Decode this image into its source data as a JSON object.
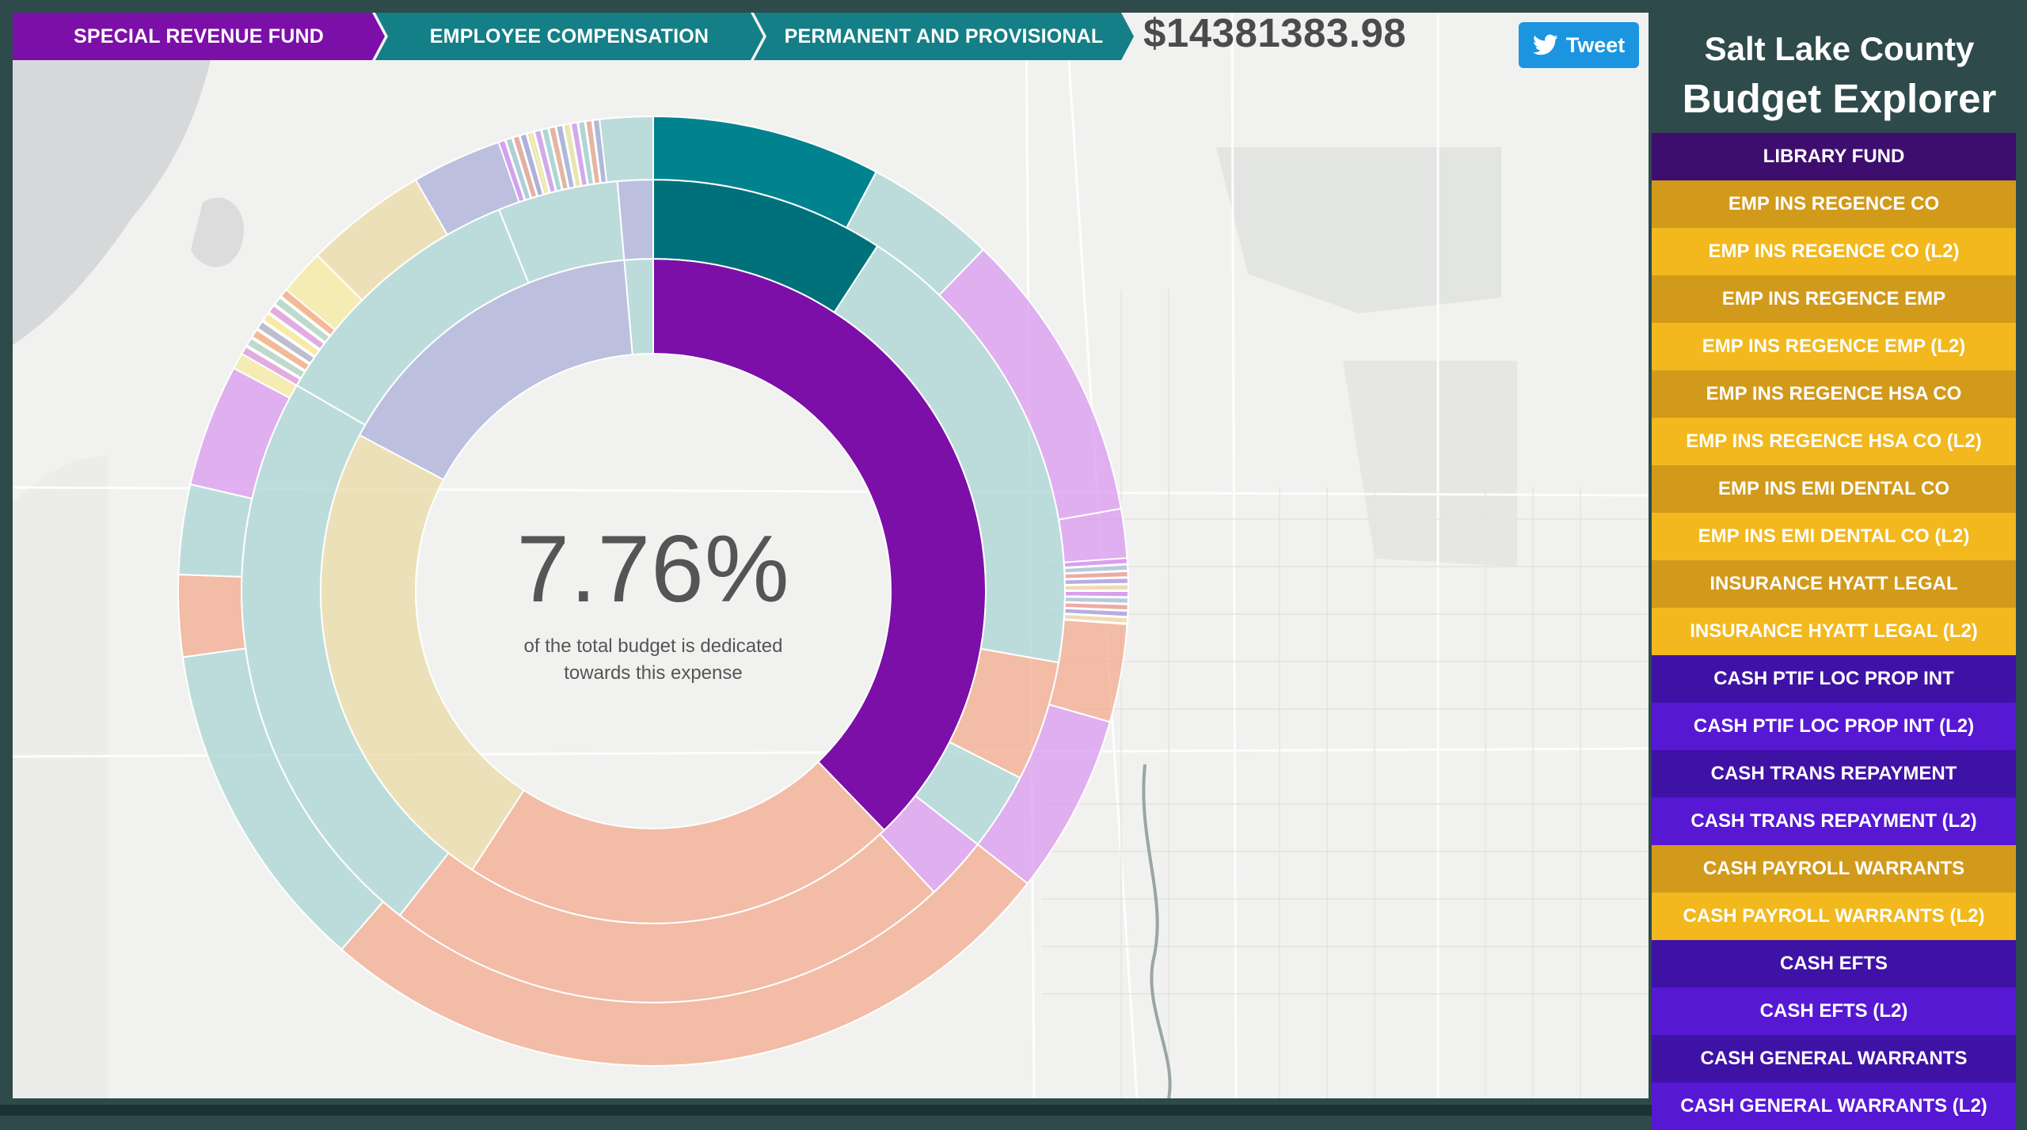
{
  "breadcrumb": [
    {
      "label": "SPECIAL REVENUE FUND",
      "color": "#7c0fa8"
    },
    {
      "label": "EMPLOYEE COMPENSATION",
      "color": "#147f86"
    },
    {
      "label": "PERMANENT AND PROVISIONAL",
      "color": "#147f86"
    }
  ],
  "total_amount": "$14381383.98",
  "tweet": {
    "label": "Tweet",
    "icon": "twitter-bird-icon"
  },
  "center": {
    "percent": "7.76%",
    "caption_line1": "of the total budget is dedicated",
    "caption_line2": "towards this expense"
  },
  "sidebar": {
    "title_line1": "Salt Lake County",
    "title_line2": "Budget Explorer",
    "items": [
      {
        "label": "LIBRARY FUND",
        "color": "#3d0e6e"
      },
      {
        "label": "EMP INS REGENCE CO",
        "color": "#d29a1b"
      },
      {
        "label": "EMP INS REGENCE CO (L2)",
        "color": "#f2b81d"
      },
      {
        "label": "EMP INS REGENCE EMP",
        "color": "#d29a1b"
      },
      {
        "label": "EMP INS REGENCE EMP (L2)",
        "color": "#f2b81d"
      },
      {
        "label": "EMP INS REGENCE HSA CO",
        "color": "#d29a1b"
      },
      {
        "label": "EMP INS REGENCE HSA CO (L2)",
        "color": "#f2b81d"
      },
      {
        "label": "EMP INS EMI DENTAL CO",
        "color": "#d29a1b"
      },
      {
        "label": "EMP INS EMI DENTAL CO (L2)",
        "color": "#f2b81d"
      },
      {
        "label": "INSURANCE HYATT LEGAL",
        "color": "#d29a1b"
      },
      {
        "label": "INSURANCE HYATT LEGAL (L2)",
        "color": "#f2b81d"
      },
      {
        "label": "CASH PTIF LOC PROP INT",
        "color": "#3f12a6"
      },
      {
        "label": "CASH PTIF LOC PROP INT (L2)",
        "color": "#5718d4"
      },
      {
        "label": "CASH TRANS REPAYMENT",
        "color": "#3f12a6"
      },
      {
        "label": "CASH TRANS REPAYMENT (L2)",
        "color": "#5718d4"
      },
      {
        "label": "CASH PAYROLL WARRANTS",
        "color": "#d29a1b"
      },
      {
        "label": "CASH PAYROLL WARRANTS (L2)",
        "color": "#f2b81d"
      },
      {
        "label": "CASH EFTS",
        "color": "#3f12a6"
      },
      {
        "label": "CASH EFTS (L2)",
        "color": "#5718d4"
      },
      {
        "label": "CASH GENERAL WARRANTS",
        "color": "#3f12a6"
      },
      {
        "label": "CASH GENERAL WARRANTS (L2)",
        "color": "#5718d4"
      }
    ]
  },
  "sunburst": {
    "selected": {
      "label": "PERMANENT AND PROVISIONAL",
      "share": 0.0776
    },
    "colors": {
      "selected": "#7c0fa8",
      "teal": "#00838f",
      "teal_dark": "#00717b",
      "teal_light": "#a9d4d4",
      "salmon": "#f2a98d",
      "sand": "#e8d9a6",
      "lavender": "#a9aed8",
      "violet_light": "#d998ef",
      "yellow_light": "#f6e9a0"
    }
  }
}
